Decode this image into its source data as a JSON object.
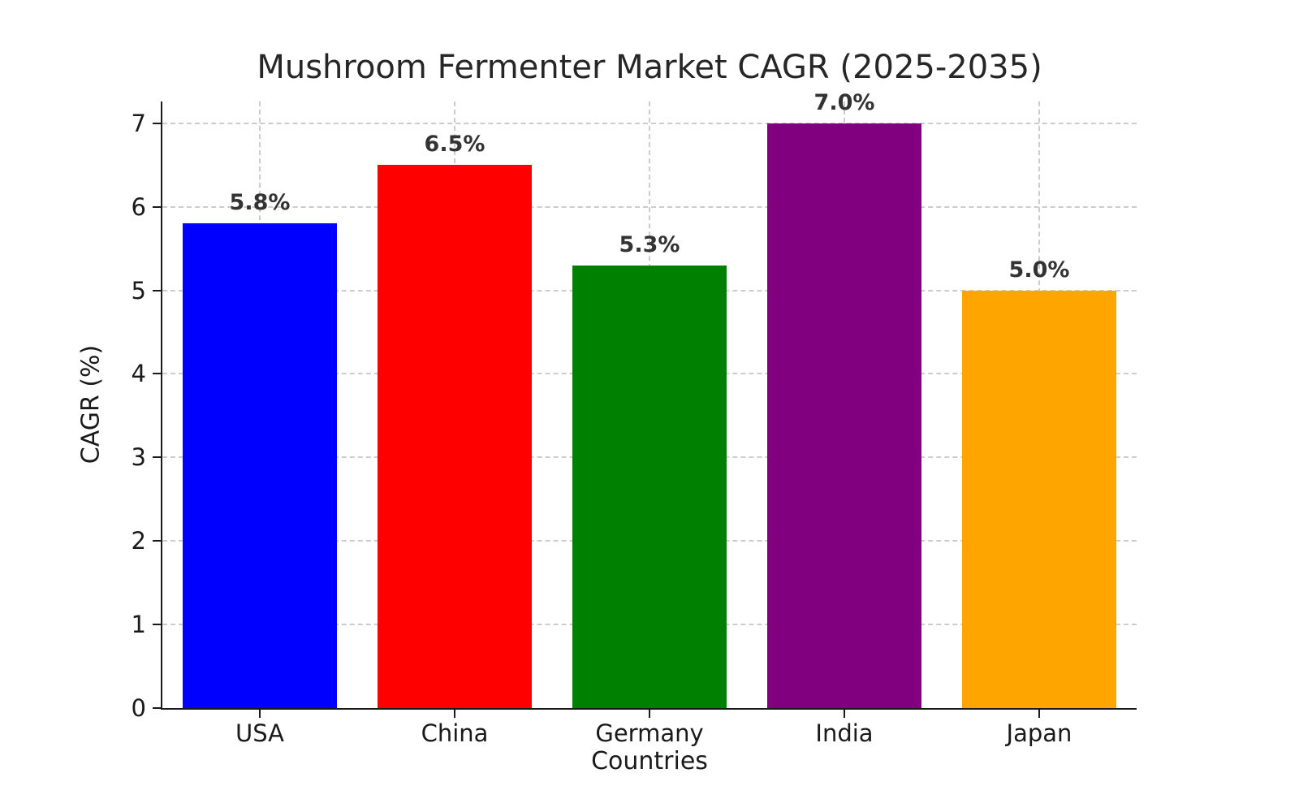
{
  "chart_data": {
    "type": "bar",
    "title": "Mushroom Fermenter Market CAGR (2025-2035)",
    "xlabel": "Countries",
    "ylabel": "CAGR (%)",
    "categories": [
      "USA",
      "China",
      "Germany",
      "India",
      "Japan"
    ],
    "values": [
      5.8,
      6.5,
      5.3,
      7.0,
      5.0
    ],
    "value_labels": [
      "5.8%",
      "6.5%",
      "5.3%",
      "7.0%",
      "5.0%"
    ],
    "bar_colors": [
      "#0000ff",
      "#ff0000",
      "#008000",
      "#800080",
      "#ffa500"
    ],
    "ylim": [
      0,
      7.26
    ],
    "yticks": [
      0,
      1,
      2,
      3,
      4,
      5,
      6,
      7
    ],
    "grid": true,
    "grid_style": "dashed",
    "legend": "none",
    "background": "#ffffff"
  }
}
